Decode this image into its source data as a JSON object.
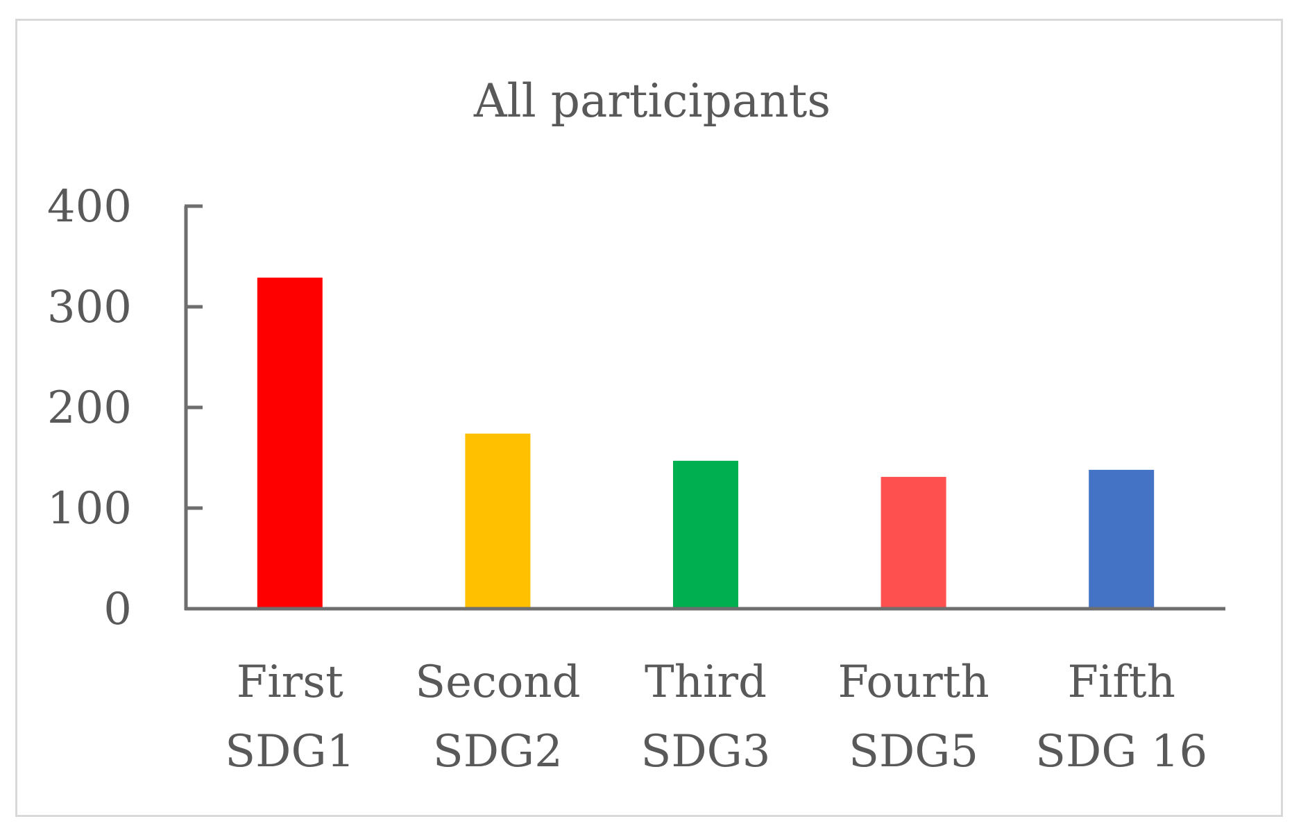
{
  "chart_data": {
    "type": "bar",
    "title": "All participants",
    "xlabel": "",
    "ylabel": "",
    "categories": [
      [
        "First",
        "SDG1"
      ],
      [
        "Second",
        "SDG2"
      ],
      [
        "Third",
        "SDG3"
      ],
      [
        "Fourth",
        "SDG5"
      ],
      [
        "Fifth",
        "SDG 16"
      ]
    ],
    "values": [
      329,
      174,
      147,
      131,
      138
    ],
    "colors": [
      "#ff0000",
      "#ffc000",
      "#00b050",
      "#ff5050",
      "#4472c4"
    ],
    "ylim": [
      0,
      400
    ],
    "yticks": [
      0,
      100,
      200,
      300,
      400
    ],
    "grid": false,
    "legend": "none"
  }
}
